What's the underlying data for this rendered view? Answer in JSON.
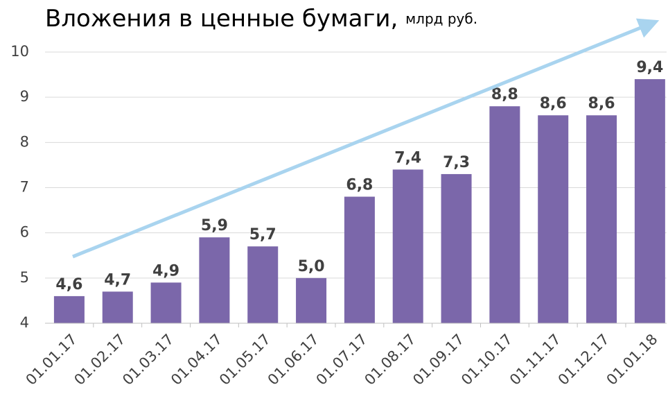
{
  "chart_data": {
    "type": "bar",
    "title": "Вложения в ценные бумаги,",
    "subtitle": "млрд руб.",
    "categories": [
      "01.01.17",
      "01.02.17",
      "01.03.17",
      "01.04.17",
      "01.05.17",
      "01.06.17",
      "01.07.17",
      "01.08.17",
      "01.09.17",
      "01.10.17",
      "01.11.17",
      "01.12.17",
      "01.01.18"
    ],
    "values": [
      4.6,
      4.7,
      4.9,
      5.9,
      5.7,
      5.0,
      6.8,
      7.4,
      7.3,
      8.8,
      8.6,
      8.6,
      9.4
    ],
    "value_labels": [
      "4,6",
      "4,7",
      "4,9",
      "5,9",
      "5,7",
      "5,0",
      "6,8",
      "7,4",
      "7,3",
      "8,8",
      "8,6",
      "8,6",
      "9,4"
    ],
    "color": "#7b67aa",
    "ylim": [
      4,
      10
    ],
    "yticks": [
      4,
      5,
      6,
      7,
      8,
      9,
      10
    ],
    "grid": true
  }
}
